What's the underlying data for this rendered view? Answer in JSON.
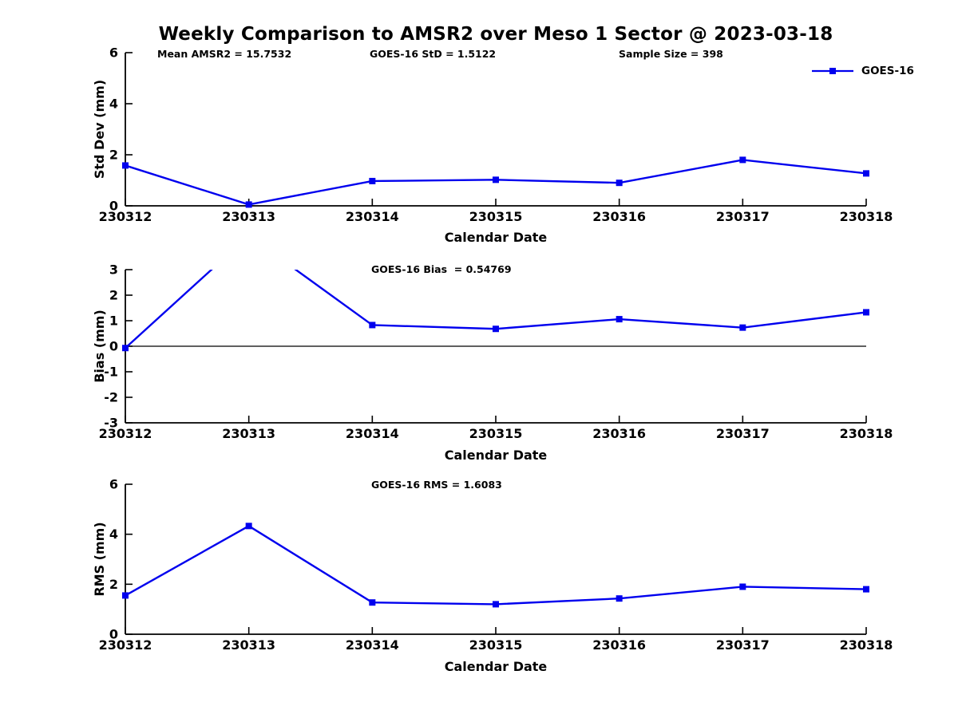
{
  "title": "Weekly Comparison to AMSR2 over Meso 1 Sector @ 2023-03-18",
  "legend": {
    "label": "GOES-16"
  },
  "colors": {
    "line": "#0000ee",
    "axis": "#000000",
    "text": "#000000",
    "background": "#ffffff"
  },
  "chart_data": [
    {
      "type": "line",
      "name": "std-dev",
      "ylabel": "Std Dev (mm)",
      "xlabel": "Calendar Date",
      "categories": [
        "230312",
        "230313",
        "230314",
        "230315",
        "230316",
        "230317",
        "230318"
      ],
      "ylim": [
        0,
        6
      ],
      "yticks": [
        0,
        2,
        4,
        6
      ],
      "grid": false,
      "legend_position": "top-right",
      "annotations": [
        "Mean AMSR2 = 15.7532",
        "GOES-16 StD = 1.5122",
        "Sample Size = 398"
      ],
      "series": [
        {
          "name": "GOES-16",
          "values": [
            1.58,
            0.05,
            0.97,
            1.02,
            0.9,
            1.8,
            1.27
          ]
        }
      ]
    },
    {
      "type": "line",
      "name": "bias",
      "ylabel": "Bias (mm)",
      "xlabel": "Calendar Date",
      "categories": [
        "230312",
        "230313",
        "230314",
        "230315",
        "230316",
        "230317",
        "230318"
      ],
      "ylim": [
        -3,
        3
      ],
      "yticks": [
        -3,
        -2,
        -1,
        0,
        1,
        2,
        3
      ],
      "grid": false,
      "zero_line": true,
      "clip": true,
      "annotations": [
        "GOES-16 Bias  = 0.54769"
      ],
      "series": [
        {
          "name": "GOES-16",
          "values": [
            -0.07,
            4.33,
            0.83,
            0.68,
            1.06,
            0.73,
            1.33
          ]
        }
      ]
    },
    {
      "type": "line",
      "name": "rms",
      "ylabel": "RMS (mm)",
      "xlabel": "Calendar Date",
      "categories": [
        "230312",
        "230313",
        "230314",
        "230315",
        "230316",
        "230317",
        "230318"
      ],
      "ylim": [
        0,
        6
      ],
      "yticks": [
        0,
        2,
        4,
        6
      ],
      "grid": false,
      "annotations": [
        "GOES-16 RMS = 1.6083"
      ],
      "series": [
        {
          "name": "GOES-16",
          "values": [
            1.55,
            4.33,
            1.27,
            1.2,
            1.43,
            1.9,
            1.8
          ]
        }
      ]
    }
  ]
}
